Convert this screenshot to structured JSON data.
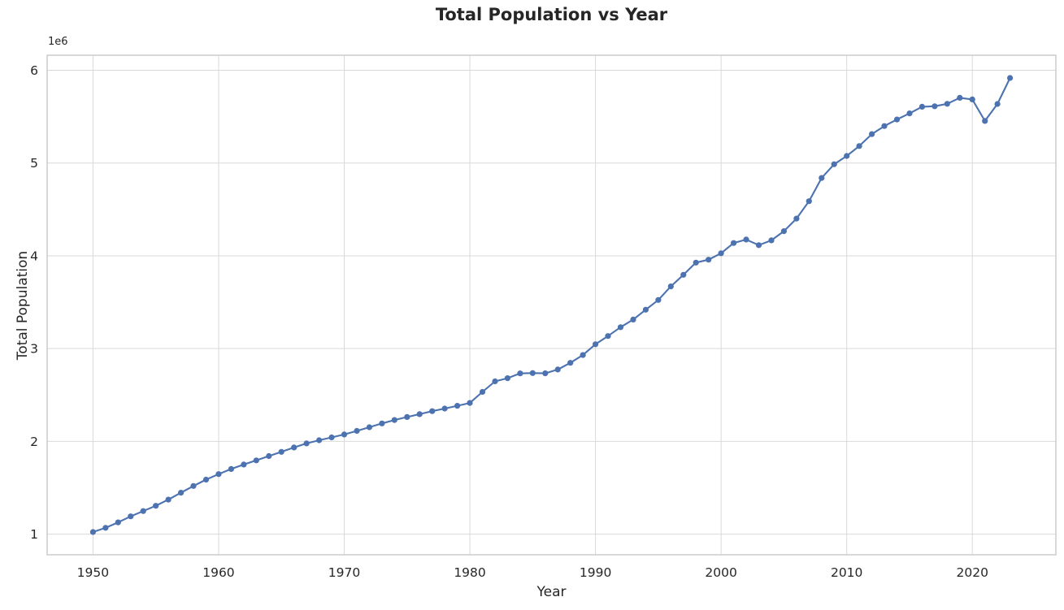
{
  "chart_data": {
    "type": "line",
    "title": "Total Population vs Year",
    "xlabel": "Year",
    "ylabel": "Total Population",
    "offset_label": "1e6",
    "legend": false,
    "grid": true,
    "line_color": "#4C72B0",
    "marker": "circle",
    "grid_color": "#d9d9d9",
    "spine_color": "#cccccc",
    "xlim": [
      1946.35,
      2026.65
    ],
    "ylim": [
      777325,
      6162375
    ],
    "x_ticks": [
      1950,
      1960,
      1970,
      1980,
      1990,
      2000,
      2010,
      2020
    ],
    "x_tick_labels": [
      "1950",
      "1960",
      "1970",
      "1980",
      "1990",
      "2000",
      "2010",
      "2020"
    ],
    "y_ticks": [
      1000000,
      2000000,
      3000000,
      4000000,
      5000000,
      6000000
    ],
    "y_tick_labels": [
      "1",
      "2",
      "3",
      "4",
      "5",
      "6"
    ],
    "series": [
      {
        "name": "Total Population",
        "x": [
          1950,
          1951,
          1952,
          1953,
          1954,
          1955,
          1956,
          1957,
          1958,
          1959,
          1960,
          1961,
          1962,
          1963,
          1964,
          1965,
          1966,
          1967,
          1968,
          1969,
          1970,
          1971,
          1972,
          1973,
          1974,
          1975,
          1976,
          1977,
          1978,
          1979,
          1980,
          1981,
          1982,
          1983,
          1984,
          1985,
          1986,
          1987,
          1988,
          1989,
          1990,
          1991,
          1992,
          1993,
          1994,
          1995,
          1996,
          1997,
          1998,
          1999,
          2000,
          2001,
          2002,
          2003,
          2004,
          2005,
          2006,
          2007,
          2008,
          2009,
          2010,
          2011,
          2012,
          2013,
          2014,
          2015,
          2016,
          2017,
          2018,
          2019,
          2020,
          2021,
          2022,
          2023
        ],
        "y": [
          1022100,
          1068100,
          1127000,
          1191800,
          1248200,
          1305500,
          1371600,
          1445900,
          1518800,
          1587200,
          1646400,
          1702400,
          1750200,
          1795000,
          1841600,
          1886900,
          1934400,
          1977600,
          2012000,
          2042500,
          2074500,
          2112900,
          2152400,
          2193000,
          2229800,
          2262600,
          2293300,
          2325300,
          2353600,
          2383500,
          2413900,
          2532800,
          2646500,
          2681100,
          2732200,
          2736000,
          2733400,
          2774800,
          2846100,
          2930900,
          3047100,
          3135100,
          3230700,
          3313500,
          3419000,
          3524500,
          3670700,
          3796000,
          3927200,
          3958700,
          4027900,
          4138000,
          4176000,
          4114800,
          4166700,
          4265800,
          4401400,
          4588600,
          4839400,
          4987600,
          5076700,
          5183700,
          5312400,
          5399200,
          5469700,
          5535000,
          5607300,
          5612300,
          5638700,
          5703600,
          5685800,
          5453600,
          5637000,
          5917600
        ]
      }
    ]
  }
}
